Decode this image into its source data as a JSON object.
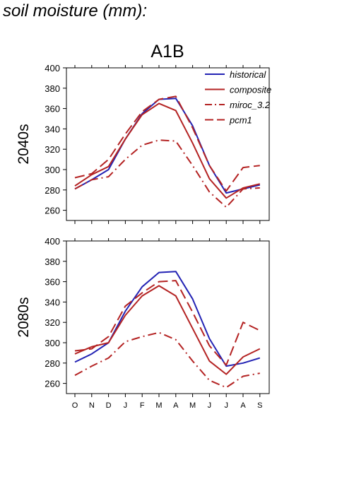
{
  "page": {
    "title": "soil moisture (mm):"
  },
  "chart_data": {
    "type": "line",
    "title": "A1B",
    "x": [
      "O",
      "N",
      "D",
      "J",
      "F",
      "M",
      "A",
      "M",
      "J",
      "J",
      "A",
      "S"
    ],
    "ylim": [
      250,
      400
    ],
    "yticks": [
      260,
      280,
      300,
      320,
      340,
      360,
      380,
      400
    ],
    "grid": false,
    "legend": {
      "placement": "top-right",
      "entries": [
        "historical",
        "composite",
        "miroc_3.2",
        "pcm1"
      ]
    },
    "colors": {
      "historical": "#2323b4",
      "composite": "#b42323",
      "miroc_3.2": "#b42323",
      "pcm1": "#b42323"
    },
    "panels": [
      {
        "label": "2040s",
        "series": [
          {
            "name": "historical",
            "style": "solid",
            "values": [
              281,
              290,
              300,
              330,
              355,
              369,
              370,
              343,
              304,
              277,
              281,
              285
            ]
          },
          {
            "name": "composite",
            "style": "solid",
            "values": [
              284,
              295,
              303,
              330,
              354,
              365,
              358,
              326,
              291,
              272,
              282,
              286
            ]
          },
          {
            "name": "miroc_3.2",
            "style": "dashdot",
            "values": [
              281,
              290,
              293,
              310,
              324,
              329,
              328,
              304,
              278,
              263,
              281,
              282
            ]
          },
          {
            "name": "pcm1",
            "style": "dashed",
            "values": [
              292,
              296,
              310,
              335,
              357,
              369,
              372,
              341,
              304,
              279,
              302,
              304
            ]
          }
        ]
      },
      {
        "label": "2080s",
        "series": [
          {
            "name": "historical",
            "style": "solid",
            "values": [
              281,
              289,
              300,
              331,
              355,
              369,
              370,
              343,
              304,
              277,
              280,
              285
            ]
          },
          {
            "name": "composite",
            "style": "solid",
            "values": [
              289,
              296,
              300,
              327,
              346,
              356,
              346,
              314,
              282,
              269,
              286,
              294
            ]
          },
          {
            "name": "miroc_3.2",
            "style": "dashdot",
            "values": [
              268,
              277,
              285,
              301,
              306,
              310,
              303,
              282,
              263,
              256,
              267,
              270
            ]
          },
          {
            "name": "pcm1",
            "style": "dashed",
            "values": [
              292,
              294,
              306,
              336,
              349,
              360,
              361,
              330,
              297,
              278,
              320,
              312
            ]
          }
        ]
      }
    ]
  }
}
